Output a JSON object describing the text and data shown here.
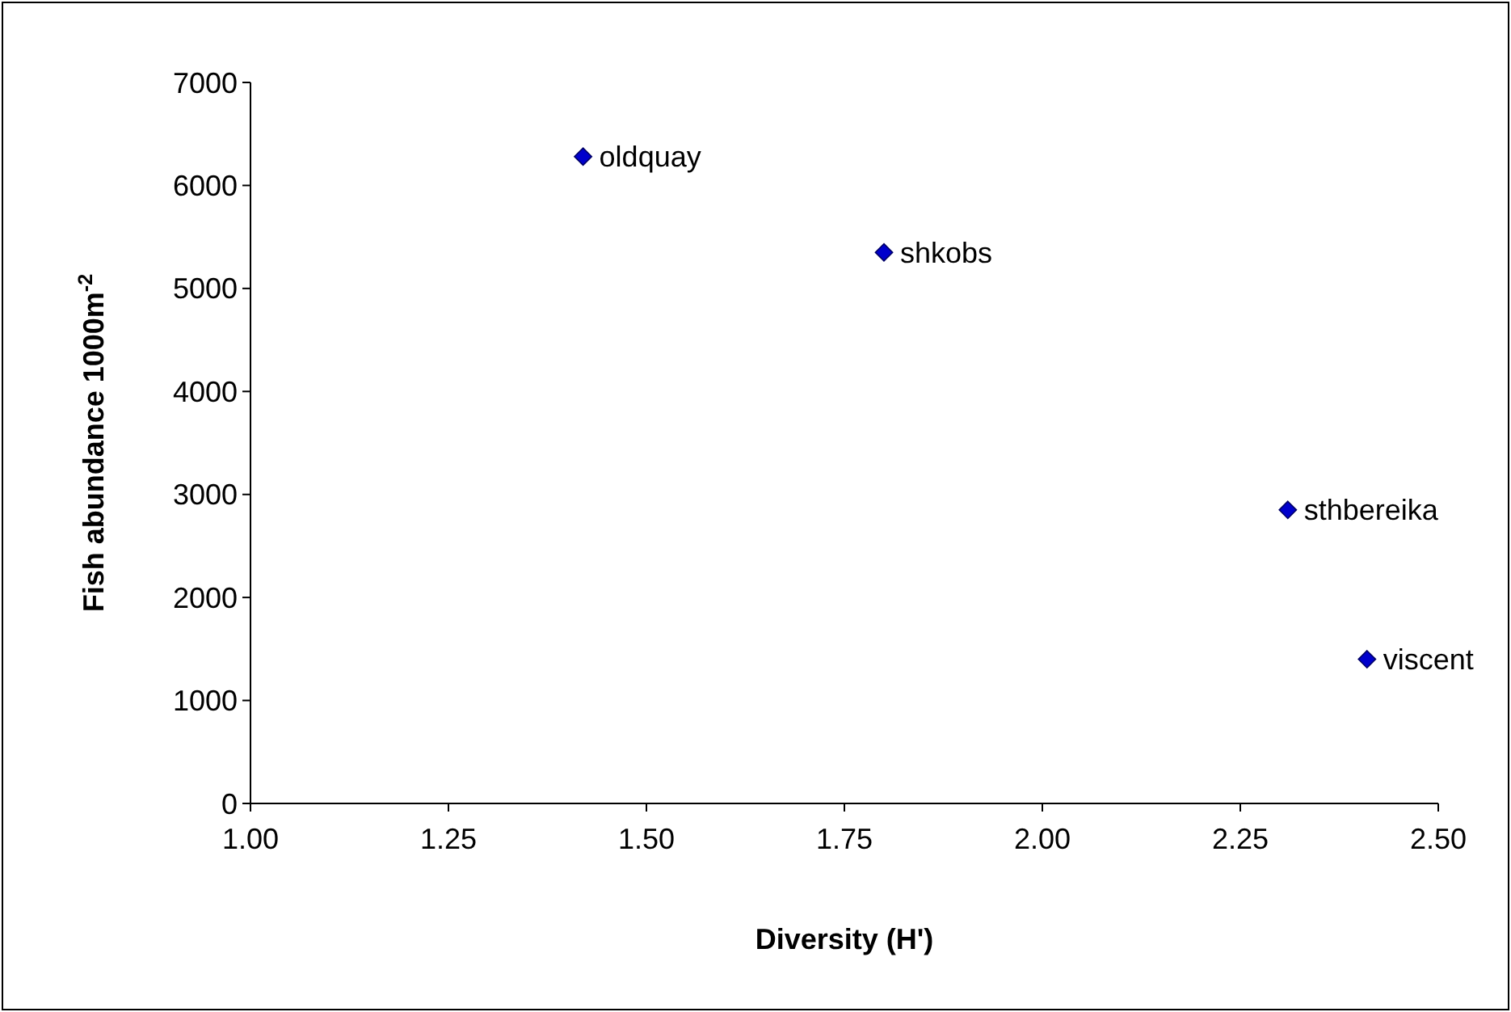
{
  "chart_data": {
    "type": "scatter",
    "xlabel": "Diversity (H')",
    "ylabel": "Fish abundance 1000m$^{-2}$",
    "series": [
      {
        "color": "#0000cc",
        "x": [
          1.42,
          1.8,
          2.31,
          2.41
        ],
        "values": [
          6280,
          5350,
          2850,
          1400
        ]
      }
    ],
    "xlim": [
      1,
      2.5
    ],
    "xticks": [
      {
        "value": 1,
        "label": "1.00"
      },
      {
        "value": 1.25,
        "label": "1.25"
      },
      {
        "value": 1.5,
        "label": "1.50"
      },
      {
        "value": 1.75,
        "label": "1.75"
      },
      {
        "value": 2,
        "label": "2.00"
      },
      {
        "value": 2.25,
        "label": "2.25"
      },
      {
        "value": 2.5,
        "label": "2.50"
      }
    ],
    "ylim": [
      0,
      7000
    ],
    "yticks": [
      0,
      1000,
      2000,
      3000,
      4000,
      5000,
      6000,
      7000
    ],
    "marker": "diamond",
    "annotations": [
      {
        "text": "oldquay",
        "x": 1.42,
        "y": 6280
      },
      {
        "text": "shkobs",
        "x": 1.8,
        "y": 5350
      },
      {
        "text": "sthbereika",
        "x": 2.31,
        "y": 2850
      },
      {
        "text": "viscent",
        "x": 2.41,
        "y": 1400
      }
    ]
  }
}
